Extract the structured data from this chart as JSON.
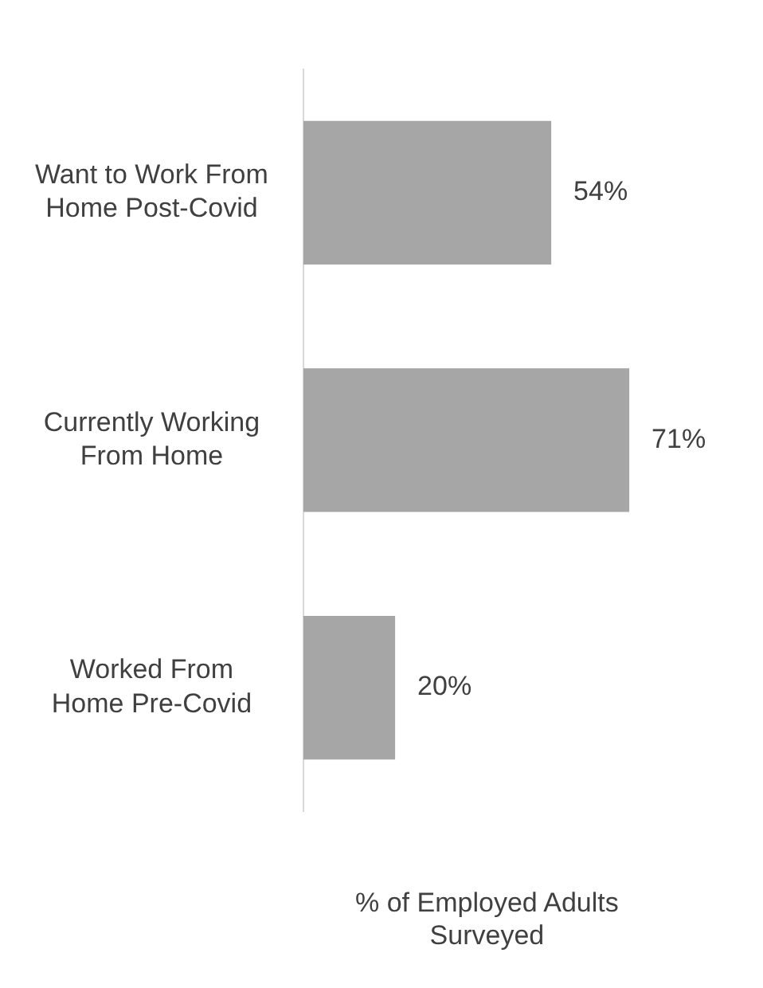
{
  "chart_data": {
    "type": "bar",
    "orientation": "horizontal",
    "tick_labels": false,
    "xlabel": "% of Employed Adults Surveyed",
    "categories": [
      "Want to Work From Home Post-Covid",
      "Currently Working From Home",
      "Worked From Home Pre-Covid"
    ],
    "values": [
      54,
      71,
      20
    ],
    "value_labels": [
      "54%",
      "71%",
      "20%"
    ],
    "color": "#a6a6a6",
    "grid": false,
    "legend": false
  }
}
